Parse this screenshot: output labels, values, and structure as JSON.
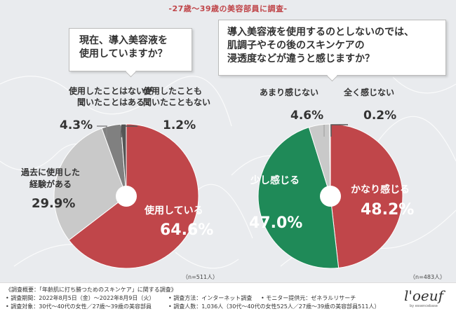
{
  "survey_title": "-27歳～39歳の美容部員に調査-",
  "question1": {
    "line1": "現在、導入美容液を",
    "line2": "使用していますか？"
  },
  "question2": {
    "line1": "導入美容液を使用するのとしないのでは、",
    "line2": "肌調子やその後のスキンケアの",
    "line3": "浸透度などが違うと感じますか？"
  },
  "chart_data": [
    {
      "type": "pie",
      "title": "現在、導入美容液を使用していますか？",
      "sample": "（n=511人）",
      "slices": [
        {
          "name": "使用している",
          "label": "使用している",
          "value": 64.6,
          "display": "64.6%",
          "color": "#c0464a"
        },
        {
          "name": "過去に使用した経験がある",
          "label1": "過去に使用した",
          "label2": "経験がある",
          "value": 29.9,
          "display": "29.9%",
          "color": "#c9c9c9"
        },
        {
          "name": "使用したことはないが聞いたことはある",
          "label1": "使用したことはないが",
          "label2": "聞いたことはある",
          "value": 4.3,
          "display": "4.3%",
          "color": "#808080"
        },
        {
          "name": "使用したことも聞いたこともない",
          "label1": "使用したことも",
          "label2": "聞いたこともない",
          "value": 1.2,
          "display": "1.2%",
          "color": "#555555"
        }
      ]
    },
    {
      "type": "pie",
      "title": "導入美容液を使用するのとしないのでは、肌調子やその後のスキンケアの浸透度などが違うと感じますか？",
      "sample": "（n=483人）",
      "slices": [
        {
          "name": "かなり感じる",
          "label": "かなり感じる",
          "value": 48.2,
          "display": "48.2%",
          "color": "#c0464a"
        },
        {
          "name": "少し感じる",
          "label": "少し感じる",
          "value": 47.0,
          "display": "47.0%",
          "color": "#1f8a58"
        },
        {
          "name": "あまり感じない",
          "label": "あまり感じない",
          "value": 4.6,
          "display": "4.6%",
          "color": "#c9c9c9"
        },
        {
          "name": "全く感じない",
          "label": "全く感じない",
          "value": 0.2,
          "display": "0.2%",
          "color": "#555555"
        }
      ]
    }
  ],
  "footer": {
    "overview": "《調査概要：「年齢肌に打ち勝つためのスキンケア」に関する調査》",
    "period": "• 調査期間：2022年8月5日（金）～2022年8月9日（火）",
    "method": "• 調査方法：インターネット調査",
    "provider": "• モニター提供元：ゼネラルリサーチ",
    "target": "• 調査対象：30代～40代の女性／27歳～39歳の美容部員",
    "count": "• 調査人数：1,036人（30代～40代の女性525人／27歳～39歳の美容部員511人）",
    "logo": "l'oeuf",
    "logo_sub": "by essencebase"
  }
}
